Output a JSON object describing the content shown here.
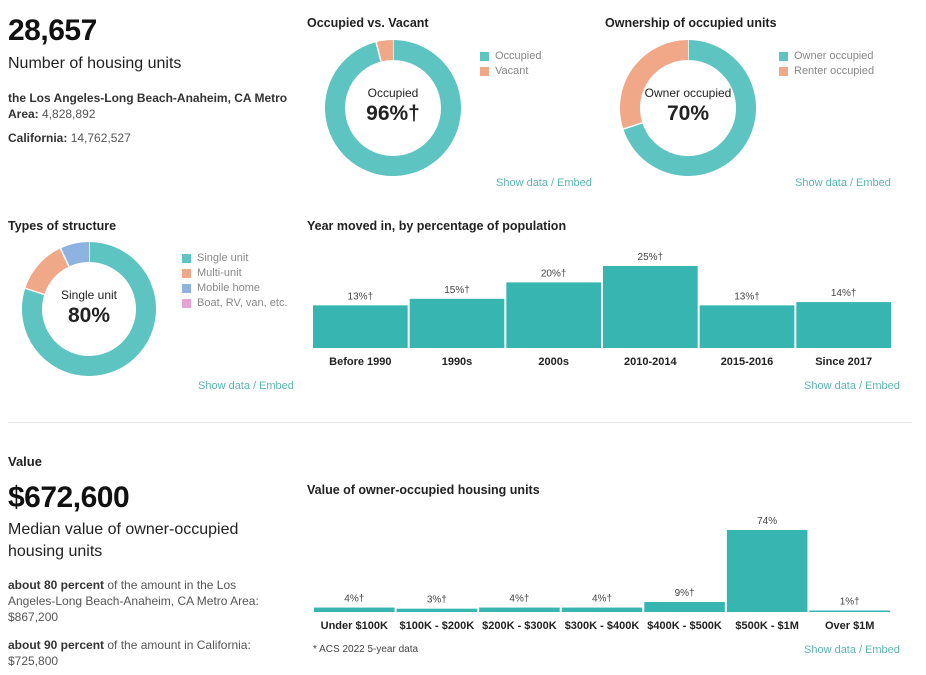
{
  "units": {
    "value": "28,657",
    "label": "Number of housing units",
    "metro_name": "the Los Angeles-Long Beach-Anaheim, CA Metro Area:",
    "metro_value": "4,828,892",
    "state_name": "California:",
    "state_value": "14,762,527"
  },
  "occupancy": {
    "title": "Occupied vs. Vacant",
    "center_label": "Occupied",
    "center_value": "96%†",
    "legend": [
      "Occupied",
      "Vacant"
    ],
    "colors": [
      "#5ec4c1",
      "#f0a889"
    ]
  },
  "ownership": {
    "title": "Ownership of occupied units",
    "center_label": "Owner occupied",
    "center_value": "70%",
    "legend": [
      "Owner occupied",
      "Renter occupied"
    ],
    "colors": [
      "#5ec4c1",
      "#f0a889"
    ]
  },
  "structure": {
    "title": "Types of structure",
    "center_label": "Single unit",
    "center_value": "80%",
    "legend": [
      "Single unit",
      "Multi-unit",
      "Mobile home",
      "Boat, RV, van, etc."
    ],
    "colors": [
      "#5ec4c1",
      "#f0a889",
      "#8fb3e0",
      "#e6a4d4"
    ]
  },
  "moved": {
    "title": "Year moved in, by percentage of population"
  },
  "value_section": {
    "heading": "Value",
    "value": "$672,600",
    "label": "Median value of owner-occupied housing units",
    "metro_emph": "about 80 percent",
    "metro_text": "of the amount in the Los Angeles-Long Beach-Anaheim, CA Metro Area:",
    "metro_value": "$867,200",
    "state_emph": "about 90 percent",
    "state_text": "of the amount in California:",
    "state_value": "$725,800"
  },
  "owner_value": {
    "title": "Value of owner-occupied housing units",
    "note": "* ACS 2022 5-year data"
  },
  "links": {
    "show_data": "Show data",
    "sep": "/",
    "embed": "Embed"
  },
  "chart_data": [
    {
      "type": "pie",
      "title": "Occupied vs. Vacant",
      "categories": [
        "Occupied",
        "Vacant"
      ],
      "values": [
        96,
        4
      ]
    },
    {
      "type": "pie",
      "title": "Ownership of occupied units",
      "categories": [
        "Owner occupied",
        "Renter occupied"
      ],
      "values": [
        70,
        30
      ]
    },
    {
      "type": "pie",
      "title": "Types of structure",
      "categories": [
        "Single unit",
        "Multi-unit",
        "Mobile home",
        "Boat, RV, van, etc."
      ],
      "values": [
        80,
        13,
        7,
        0
      ]
    },
    {
      "type": "bar",
      "title": "Year moved in, by percentage of population",
      "categories": [
        "Before 1990",
        "1990s",
        "2000s",
        "2010-2014",
        "2015-2016",
        "Since 2017"
      ],
      "values": [
        13,
        15,
        20,
        25,
        13,
        14
      ],
      "labels": [
        "13%†",
        "15%†",
        "20%†",
        "25%†",
        "13%†",
        "14%†"
      ],
      "color": "#36b5b1",
      "ylim": [
        0,
        25
      ]
    },
    {
      "type": "bar",
      "title": "Value of owner-occupied housing units",
      "categories": [
        "Under $100K",
        "$100K - $200K",
        "$200K - $300K",
        "$300K - $400K",
        "$400K - $500K",
        "$500K - $1M",
        "Over $1M"
      ],
      "values": [
        4,
        3,
        4,
        4,
        9,
        74,
        1
      ],
      "labels": [
        "4%†",
        "3%†",
        "4%†",
        "4%†",
        "9%†",
        "74%",
        "1%†"
      ],
      "color": "#36b5b1",
      "ylim": [
        0,
        74
      ]
    }
  ]
}
